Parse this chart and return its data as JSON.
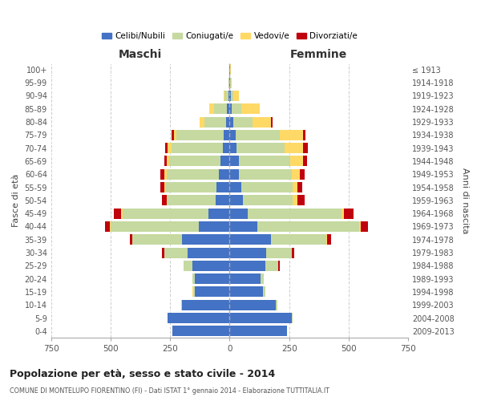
{
  "age_groups": [
    "0-4",
    "5-9",
    "10-14",
    "15-19",
    "20-24",
    "25-29",
    "30-34",
    "35-39",
    "40-44",
    "45-49",
    "50-54",
    "55-59",
    "60-64",
    "65-69",
    "70-74",
    "75-79",
    "80-84",
    "85-89",
    "90-94",
    "95-99",
    "100+"
  ],
  "birth_years": [
    "2009-2013",
    "2004-2008",
    "1999-2003",
    "1994-1998",
    "1989-1993",
    "1984-1988",
    "1979-1983",
    "1974-1978",
    "1969-1973",
    "1964-1968",
    "1959-1963",
    "1954-1958",
    "1949-1953",
    "1944-1948",
    "1939-1943",
    "1934-1938",
    "1929-1933",
    "1924-1928",
    "1919-1923",
    "1914-1918",
    "≤ 1913"
  ],
  "maschi": {
    "celibi": [
      240,
      260,
      200,
      145,
      145,
      155,
      175,
      200,
      130,
      90,
      60,
      55,
      45,
      40,
      30,
      25,
      15,
      10,
      5,
      2,
      2
    ],
    "coniugati": [
      2,
      2,
      2,
      5,
      10,
      40,
      100,
      210,
      370,
      360,
      200,
      215,
      220,
      215,
      215,
      200,
      90,
      55,
      15,
      2,
      0
    ],
    "vedovi": [
      0,
      0,
      0,
      5,
      0,
      0,
      0,
      0,
      5,
      5,
      5,
      5,
      10,
      10,
      15,
      10,
      20,
      20,
      5,
      2,
      0
    ],
    "divorziati": [
      0,
      0,
      0,
      0,
      0,
      0,
      10,
      10,
      20,
      30,
      20,
      15,
      15,
      10,
      10,
      10,
      0,
      0,
      0,
      0,
      0
    ]
  },
  "femmine": {
    "nubili": [
      240,
      260,
      195,
      140,
      130,
      150,
      155,
      175,
      115,
      75,
      55,
      50,
      40,
      40,
      30,
      25,
      15,
      10,
      5,
      2,
      2
    ],
    "coniugate": [
      2,
      5,
      5,
      10,
      15,
      55,
      105,
      230,
      430,
      395,
      210,
      215,
      220,
      215,
      200,
      185,
      80,
      40,
      10,
      2,
      0
    ],
    "vedove": [
      0,
      0,
      0,
      0,
      0,
      0,
      0,
      5,
      5,
      10,
      20,
      20,
      35,
      55,
      80,
      100,
      80,
      75,
      25,
      5,
      2
    ],
    "divorziate": [
      0,
      0,
      0,
      0,
      0,
      5,
      10,
      15,
      30,
      40,
      30,
      20,
      20,
      15,
      20,
      10,
      5,
      2,
      0,
      0,
      0
    ]
  },
  "colors": {
    "celibi": "#4472C4",
    "coniugati": "#C5D9A0",
    "vedovi": "#FFD966",
    "divorziati": "#C0000C"
  },
  "xlim": 750,
  "title": "Popolazione per età, sesso e stato civile - 2014",
  "subtitle": "COMUNE DI MONTELUPO FIORENTINO (FI) - Dati ISTAT 1° gennaio 2014 - Elaborazione TUTTITALIA.IT",
  "ylabel_left": "Fasce di età",
  "ylabel_right": "Anni di nascita",
  "xlabel_left": "Maschi",
  "xlabel_right": "Femmine",
  "legend_labels": [
    "Celibi/Nubili",
    "Coniugati/e",
    "Vedovi/e",
    "Divorziati/e"
  ],
  "background_color": "#ffffff",
  "grid_color": "#cccccc"
}
